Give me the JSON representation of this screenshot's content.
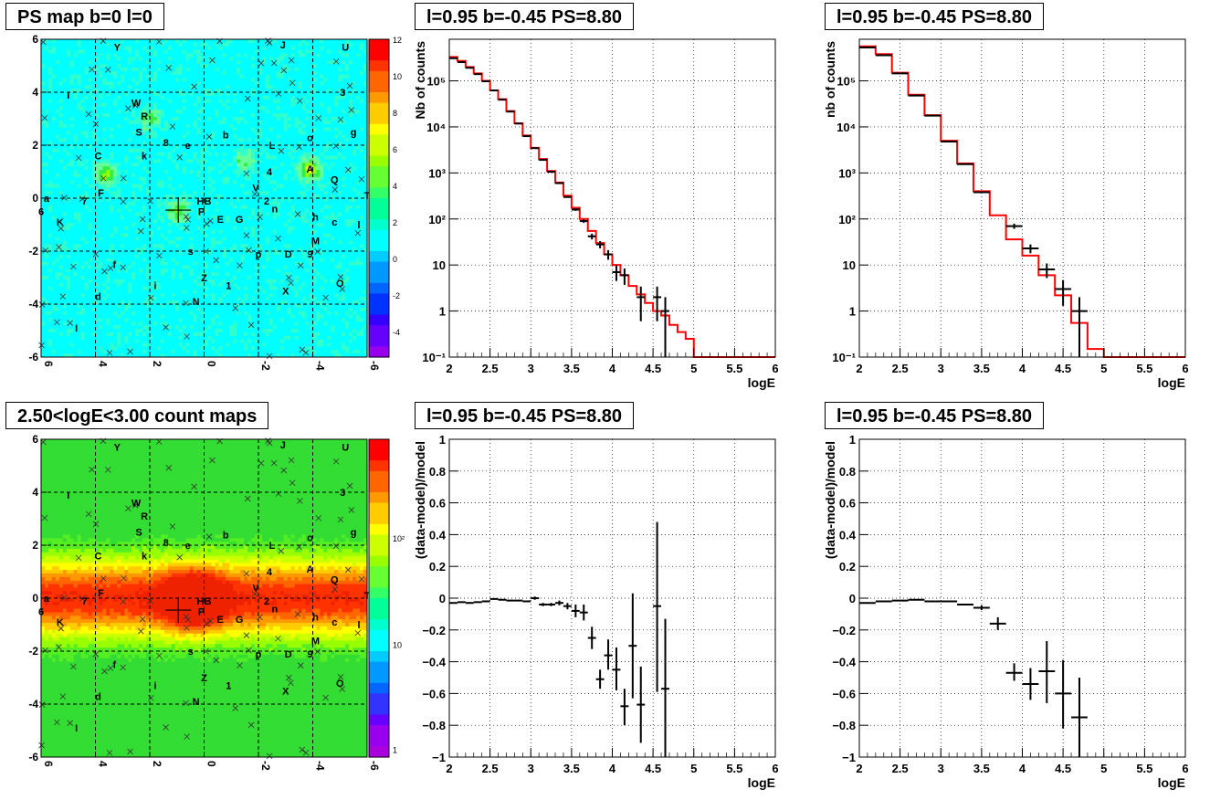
{
  "colors": {
    "histogram": "#ff0000",
    "points": "#000000",
    "psmap_low": "#00ffff",
    "count_high": "#ff0000"
  },
  "panels": {
    "psmap": {
      "title": "PS map b=0 l=0"
    },
    "countmap": {
      "title": "2.50<logE<3.00 count maps"
    }
  },
  "map_axes": {
    "x_ticks": [
      "6",
      "4",
      "2",
      "0",
      "-2",
      "-4",
      "-6"
    ],
    "y_ticks": [
      "6",
      "4",
      "2",
      "0",
      "-2",
      "-4",
      "-6"
    ],
    "psmap_z_ticks": [
      "12",
      "10",
      "8",
      "6",
      "4",
      "2",
      "0",
      "-2",
      "-4"
    ],
    "countmap_z_ticks": [
      "10²",
      "10",
      "1"
    ]
  },
  "source_labels": [
    {
      "t": "Y",
      "l": 3.2,
      "b": 5.7
    },
    {
      "t": "J",
      "l": -2.9,
      "b": 5.8
    },
    {
      "t": "U",
      "l": -5.2,
      "b": 5.7
    },
    {
      "t": "I",
      "l": 5.0,
      "b": 3.9
    },
    {
      "t": "W",
      "l": 2.5,
      "b": 3.6
    },
    {
      "t": "3",
      "l": -5.1,
      "b": 4.0
    },
    {
      "t": "R",
      "l": 2.2,
      "b": 3.1
    },
    {
      "t": "S",
      "l": 2.4,
      "b": 2.5
    },
    {
      "t": "8",
      "l": 1.4,
      "b": 2.1
    },
    {
      "t": "e",
      "l": 0.6,
      "b": 2.0
    },
    {
      "t": "b",
      "l": -0.8,
      "b": 2.4
    },
    {
      "t": "o",
      "l": -3.9,
      "b": 2.3
    },
    {
      "t": "g",
      "l": -5.5,
      "b": 2.5
    },
    {
      "t": "L",
      "l": -2.5,
      "b": 2.0
    },
    {
      "t": "C",
      "l": 3.9,
      "b": 1.6
    },
    {
      "t": "k",
      "l": 2.2,
      "b": 1.6
    },
    {
      "t": "4",
      "l": -2.4,
      "b": 1.0
    },
    {
      "t": "A",
      "l": -3.9,
      "b": 1.1
    },
    {
      "t": "Q",
      "l": -4.8,
      "b": 0.7
    },
    {
      "t": "V",
      "l": -1.9,
      "b": 0.4
    },
    {
      "t": "F",
      "l": 3.8,
      "b": 0.2
    },
    {
      "t": "7",
      "l": 4.4,
      "b": -0.1
    },
    {
      "t": "2",
      "l": -2.3,
      "b": -0.1
    },
    {
      "t": "T",
      "l": -6.0,
      "b": 0.1
    },
    {
      "t": "HB",
      "l": 0.0,
      "b": -0.1
    },
    {
      "t": "n",
      "l": -2.6,
      "b": -0.4
    },
    {
      "t": "P",
      "l": 0.1,
      "b": -0.5
    },
    {
      "t": "E",
      "l": -0.6,
      "b": -0.8
    },
    {
      "t": "G",
      "l": -1.3,
      "b": -0.8
    },
    {
      "t": "h",
      "l": -4.1,
      "b": -0.7
    },
    {
      "t": "c",
      "l": -4.8,
      "b": -0.9
    },
    {
      "t": "K",
      "l": 5.3,
      "b": -0.9
    },
    {
      "t": "l",
      "l": -5.7,
      "b": -1.0
    },
    {
      "t": "M",
      "l": -4.1,
      "b": -1.6
    },
    {
      "t": "s",
      "l": 0.5,
      "b": -2.0
    },
    {
      "t": "p",
      "l": -2.0,
      "b": -2.1
    },
    {
      "t": "D",
      "l": -3.1,
      "b": -2.1
    },
    {
      "t": "9",
      "l": -3.9,
      "b": -2.1
    },
    {
      "t": "f",
      "l": 3.3,
      "b": -2.5
    },
    {
      "t": "Z",
      "l": 0.0,
      "b": -3.0
    },
    {
      "t": "1",
      "l": -0.9,
      "b": -3.3
    },
    {
      "t": "i",
      "l": 1.8,
      "b": -3.3
    },
    {
      "t": "O",
      "l": -5.0,
      "b": -3.2
    },
    {
      "t": "X",
      "l": -3.0,
      "b": -3.5
    },
    {
      "t": "d",
      "l": 3.9,
      "b": -3.7
    },
    {
      "t": "N",
      "l": 0.3,
      "b": -3.9
    },
    {
      "t": "I",
      "l": 4.7,
      "b": -4.9
    },
    {
      "t": "a",
      "l": 5.8,
      "b": 0.0
    },
    {
      "t": "6",
      "l": 6.0,
      "b": -0.5
    }
  ],
  "source_marker": {
    "l": 0.95,
    "b": -0.45
  },
  "chart_data": [
    {
      "type": "line",
      "title": "l=0.95 b=-0.45 PS=8.80",
      "xlabel": "logE",
      "ylabel": "Nb of counts",
      "yscale": "log",
      "xlim": [
        2,
        6
      ],
      "ylim": [
        0.1,
        800000
      ],
      "grid": true,
      "x_ticks": [
        "2",
        "2.5",
        "3",
        "3.5",
        "4",
        "4.5",
        "5",
        "5.5",
        "6"
      ],
      "y_ticks": [
        {
          "v": 100000,
          "t": "10⁵"
        },
        {
          "v": 10000,
          "t": "10⁴"
        },
        {
          "v": 1000,
          "t": "10³"
        },
        {
          "v": 100,
          "t": "10²"
        },
        {
          "v": 10,
          "t": "10"
        },
        {
          "v": 1,
          "t": "1"
        },
        {
          "v": 0.1,
          "t": "10⁻¹"
        }
      ],
      "model_bin_width": 0.1,
      "model": [
        330000,
        270000,
        200000,
        145000,
        100000,
        62000,
        40000,
        22000,
        12000,
        6500,
        3500,
        2000,
        1100,
        620,
        320,
        175,
        100,
        55,
        30,
        17,
        10,
        6,
        3.5,
        2.3,
        1.5,
        1.0,
        0.8,
        0.5,
        0.35,
        0.25,
        0.1,
        0.1,
        0.1,
        0.1,
        0.1,
        0.1,
        0.1,
        0.1,
        0.1,
        0.1
      ],
      "data": [
        {
          "x": 2.05,
          "y": 310000,
          "xe": 0.05,
          "yl": 310000,
          "yh": 310000
        },
        {
          "x": 2.15,
          "y": 255000,
          "xe": 0.05,
          "yl": 255000,
          "yh": 255000
        },
        {
          "x": 2.25,
          "y": 192000,
          "xe": 0.05,
          "yl": 192000,
          "yh": 192000
        },
        {
          "x": 2.35,
          "y": 140000,
          "xe": 0.05,
          "yl": 140000,
          "yh": 140000
        },
        {
          "x": 2.45,
          "y": 98000,
          "xe": 0.05,
          "yl": 98000,
          "yh": 98000
        },
        {
          "x": 2.55,
          "y": 62000,
          "xe": 0.05,
          "yl": 62000,
          "yh": 62000
        },
        {
          "x": 2.65,
          "y": 39000,
          "xe": 0.05,
          "yl": 39000,
          "yh": 39000
        },
        {
          "x": 2.75,
          "y": 21500,
          "xe": 0.05,
          "yl": 21500,
          "yh": 21500
        },
        {
          "x": 2.85,
          "y": 11800,
          "xe": 0.05,
          "yl": 11800,
          "yh": 11800
        },
        {
          "x": 2.95,
          "y": 6300,
          "xe": 0.05,
          "yl": 6300,
          "yh": 6300
        },
        {
          "x": 3.05,
          "y": 3450,
          "xe": 0.05,
          "yl": 3450,
          "yh": 3450
        },
        {
          "x": 3.15,
          "y": 1920,
          "xe": 0.05,
          "yl": 1920,
          "yh": 1920
        },
        {
          "x": 3.25,
          "y": 1060,
          "xe": 0.05,
          "yl": 1060,
          "yh": 1060
        },
        {
          "x": 3.35,
          "y": 600,
          "xe": 0.05,
          "yl": 600,
          "yh": 600
        },
        {
          "x": 3.45,
          "y": 300,
          "xe": 0.05,
          "yl": 300,
          "yh": 300
        },
        {
          "x": 3.55,
          "y": 160,
          "xe": 0.05,
          "yl": 150,
          "yh": 170
        },
        {
          "x": 3.65,
          "y": 90,
          "xe": 0.05,
          "yl": 82,
          "yh": 98
        },
        {
          "x": 3.75,
          "y": 42,
          "xe": 0.05,
          "yl": 36,
          "yh": 48
        },
        {
          "x": 3.85,
          "y": 28,
          "xe": 0.05,
          "yl": 23,
          "yh": 33
        },
        {
          "x": 3.95,
          "y": 17,
          "xe": 0.05,
          "yl": 13,
          "yh": 21
        },
        {
          "x": 4.05,
          "y": 7,
          "xe": 0.05,
          "yl": 4.5,
          "yh": 9.8
        },
        {
          "x": 4.15,
          "y": 6,
          "xe": 0.05,
          "yl": 3.7,
          "yh": 8.4
        },
        {
          "x": 4.35,
          "y": 2,
          "xe": 0.05,
          "yl": 0.6,
          "yh": 3.4
        },
        {
          "x": 4.55,
          "y": 2,
          "xe": 0.05,
          "yl": 0.6,
          "yh": 3.4
        },
        {
          "x": 4.65,
          "y": 1,
          "xe": 0.05,
          "yl": 0.1,
          "yh": 2.0
        }
      ]
    },
    {
      "type": "line",
      "title": "l=0.95 b=-0.45 PS=8.80",
      "xlabel": "logE",
      "ylabel": "nb of counts",
      "yscale": "log",
      "xlim": [
        2,
        6
      ],
      "ylim": [
        0.1,
        800000
      ],
      "grid": true,
      "x_ticks": [
        "2",
        "2.5",
        "3",
        "3.5",
        "4",
        "4.5",
        "5",
        "5.5",
        "6"
      ],
      "y_ticks": [
        {
          "v": 100000,
          "t": "10⁵"
        },
        {
          "v": 10000,
          "t": "10⁴"
        },
        {
          "v": 1000,
          "t": "10³"
        },
        {
          "v": 100,
          "t": "10²"
        },
        {
          "v": 10,
          "t": "10"
        },
        {
          "v": 1,
          "t": "1"
        },
        {
          "v": 0.1,
          "t": "10⁻¹"
        }
      ],
      "model_bin_width": 0.2,
      "model": [
        560000,
        380000,
        150000,
        50000,
        18000,
        5000,
        1600,
        400,
        120,
        36,
        16,
        6,
        2.2,
        0.55,
        0.15,
        0.1,
        0.1,
        0.1,
        0.1,
        0.1
      ],
      "data": [
        {
          "x": 2.1,
          "y": 530000,
          "xe": 0.1,
          "yl": 530000,
          "yh": 530000
        },
        {
          "x": 2.3,
          "y": 360000,
          "xe": 0.1,
          "yl": 360000,
          "yh": 360000
        },
        {
          "x": 2.5,
          "y": 145000,
          "xe": 0.1,
          "yl": 145000,
          "yh": 145000
        },
        {
          "x": 2.7,
          "y": 48000,
          "xe": 0.1,
          "yl": 48000,
          "yh": 48000
        },
        {
          "x": 2.9,
          "y": 17500,
          "xe": 0.1,
          "yl": 17500,
          "yh": 17500
        },
        {
          "x": 3.1,
          "y": 4800,
          "xe": 0.1,
          "yl": 4800,
          "yh": 4800
        },
        {
          "x": 3.3,
          "y": 1550,
          "xe": 0.1,
          "yl": 1550,
          "yh": 1550
        },
        {
          "x": 3.5,
          "y": 380,
          "xe": 0.1,
          "yl": 370,
          "yh": 390
        },
        {
          "x": 3.9,
          "y": 70,
          "xe": 0.1,
          "yl": 61,
          "yh": 79
        },
        {
          "x": 4.1,
          "y": 23,
          "xe": 0.1,
          "yl": 18,
          "yh": 28
        },
        {
          "x": 4.3,
          "y": 8,
          "xe": 0.1,
          "yl": 5.2,
          "yh": 10.8
        },
        {
          "x": 4.5,
          "y": 3,
          "xe": 0.1,
          "yl": 1.3,
          "yh": 4.7
        },
        {
          "x": 4.7,
          "y": 1,
          "xe": 0.1,
          "yl": 0.1,
          "yh": 2.0
        }
      ]
    },
    {
      "type": "scatter",
      "title": "l=0.95 b=-0.45 PS=8.80",
      "xlabel": "logE",
      "ylabel": "(data-model)/model",
      "xlim": [
        2,
        6
      ],
      "ylim": [
        -1,
        1
      ],
      "grid": true,
      "x_ticks": [
        "2",
        "2.5",
        "3",
        "3.5",
        "4",
        "4.5",
        "5",
        "5.5",
        "6"
      ],
      "y_ticks": [
        {
          "v": 1,
          "t": "1"
        },
        {
          "v": 0.8,
          "t": "0.8"
        },
        {
          "v": 0.6,
          "t": "0.6"
        },
        {
          "v": 0.4,
          "t": "0.4"
        },
        {
          "v": 0.2,
          "t": "0.2"
        },
        {
          "v": 0,
          "t": "0"
        },
        {
          "v": -0.2,
          "t": "−0.2"
        },
        {
          "v": -0.4,
          "t": "−0.4"
        },
        {
          "v": -0.6,
          "t": "−0.6"
        },
        {
          "v": -0.8,
          "t": "−0.8"
        },
        {
          "v": -1,
          "t": "−1"
        }
      ],
      "data": [
        {
          "x": 2.05,
          "y": -0.03,
          "xe": 0.05,
          "yl": -0.03,
          "yh": -0.03
        },
        {
          "x": 2.15,
          "y": -0.025,
          "xe": 0.05,
          "yl": -0.025,
          "yh": -0.025
        },
        {
          "x": 2.25,
          "y": -0.03,
          "xe": 0.05,
          "yl": -0.03,
          "yh": -0.03
        },
        {
          "x": 2.35,
          "y": -0.025,
          "xe": 0.05,
          "yl": -0.025,
          "yh": -0.025
        },
        {
          "x": 2.45,
          "y": -0.02,
          "xe": 0.05,
          "yl": -0.02,
          "yh": -0.02
        },
        {
          "x": 2.55,
          "y": -0.005,
          "xe": 0.05,
          "yl": -0.005,
          "yh": -0.005
        },
        {
          "x": 2.65,
          "y": -0.01,
          "xe": 0.05,
          "yl": -0.01,
          "yh": -0.01
        },
        {
          "x": 2.75,
          "y": -0.015,
          "xe": 0.05,
          "yl": -0.015,
          "yh": -0.015
        },
        {
          "x": 2.85,
          "y": -0.015,
          "xe": 0.05,
          "yl": -0.015,
          "yh": -0.015
        },
        {
          "x": 2.95,
          "y": -0.02,
          "xe": 0.05,
          "yl": -0.02,
          "yh": -0.02
        },
        {
          "x": 3.05,
          "y": 0.0,
          "xe": 0.05,
          "yl": -0.01,
          "yh": 0.01
        },
        {
          "x": 3.15,
          "y": -0.04,
          "xe": 0.05,
          "yl": -0.05,
          "yh": -0.03
        },
        {
          "x": 3.25,
          "y": -0.04,
          "xe": 0.05,
          "yl": -0.05,
          "yh": -0.03
        },
        {
          "x": 3.35,
          "y": -0.03,
          "xe": 0.05,
          "yl": -0.045,
          "yh": -0.015
        },
        {
          "x": 3.45,
          "y": -0.05,
          "xe": 0.05,
          "yl": -0.07,
          "yh": -0.03
        },
        {
          "x": 3.55,
          "y": -0.08,
          "xe": 0.05,
          "yl": -0.12,
          "yh": -0.04
        },
        {
          "x": 3.65,
          "y": -0.09,
          "xe": 0.05,
          "yl": -0.14,
          "yh": -0.04
        },
        {
          "x": 3.75,
          "y": -0.25,
          "xe": 0.05,
          "yl": -0.32,
          "yh": -0.18
        },
        {
          "x": 3.85,
          "y": -0.51,
          "xe": 0.05,
          "yl": -0.57,
          "yh": -0.45
        },
        {
          "x": 3.95,
          "y": -0.36,
          "xe": 0.05,
          "yl": -0.45,
          "yh": -0.26
        },
        {
          "x": 4.05,
          "y": -0.45,
          "xe": 0.05,
          "yl": -0.58,
          "yh": -0.31
        },
        {
          "x": 4.15,
          "y": -0.68,
          "xe": 0.05,
          "yl": -0.8,
          "yh": -0.57
        },
        {
          "x": 4.25,
          "y": -0.3,
          "xe": 0.05,
          "yl": -0.63,
          "yh": 0.03
        },
        {
          "x": 4.35,
          "y": -0.67,
          "xe": 0.05,
          "yl": -0.91,
          "yh": -0.43
        },
        {
          "x": 4.55,
          "y": -0.05,
          "xe": 0.05,
          "yl": -0.59,
          "yh": 0.48
        },
        {
          "x": 4.65,
          "y": -0.57,
          "xe": 0.05,
          "yl": -1.0,
          "yh": -0.13
        }
      ]
    },
    {
      "type": "scatter",
      "title": "l=0.95 b=-0.45 PS=8.80",
      "xlabel": "logE",
      "ylabel": "(data-model)/model",
      "xlim": [
        2,
        6
      ],
      "ylim": [
        -1,
        1
      ],
      "grid": true,
      "x_ticks": [
        "2",
        "2.5",
        "3",
        "3.5",
        "4",
        "4.5",
        "5",
        "5.5",
        "6"
      ],
      "y_ticks": [
        {
          "v": 1,
          "t": "1"
        },
        {
          "v": 0.8,
          "t": "0.8"
        },
        {
          "v": 0.6,
          "t": "0.6"
        },
        {
          "v": 0.4,
          "t": "0.4"
        },
        {
          "v": 0.2,
          "t": "0.2"
        },
        {
          "v": 0,
          "t": "0"
        },
        {
          "v": -0.2,
          "t": "−0.2"
        },
        {
          "v": -0.4,
          "t": "−0.4"
        },
        {
          "v": -0.6,
          "t": "−0.6"
        },
        {
          "v": -0.8,
          "t": "−0.8"
        },
        {
          "v": -1,
          "t": "−1"
        }
      ],
      "data": [
        {
          "x": 2.1,
          "y": -0.03,
          "xe": 0.1,
          "yl": -0.03,
          "yh": -0.03
        },
        {
          "x": 2.3,
          "y": -0.02,
          "xe": 0.1,
          "yl": -0.02,
          "yh": -0.02
        },
        {
          "x": 2.5,
          "y": -0.015,
          "xe": 0.1,
          "yl": -0.015,
          "yh": -0.015
        },
        {
          "x": 2.7,
          "y": -0.01,
          "xe": 0.1,
          "yl": -0.01,
          "yh": -0.01
        },
        {
          "x": 2.9,
          "y": -0.02,
          "xe": 0.1,
          "yl": -0.02,
          "yh": -0.02
        },
        {
          "x": 3.1,
          "y": -0.02,
          "xe": 0.1,
          "yl": -0.02,
          "yh": -0.02
        },
        {
          "x": 3.3,
          "y": -0.04,
          "xe": 0.1,
          "yl": -0.045,
          "yh": -0.035
        },
        {
          "x": 3.5,
          "y": -0.06,
          "xe": 0.1,
          "yl": -0.075,
          "yh": -0.045
        },
        {
          "x": 3.7,
          "y": -0.16,
          "xe": 0.1,
          "yl": -0.2,
          "yh": -0.12
        },
        {
          "x": 3.9,
          "y": -0.47,
          "xe": 0.1,
          "yl": -0.52,
          "yh": -0.41
        },
        {
          "x": 4.1,
          "y": -0.54,
          "xe": 0.1,
          "yl": -0.64,
          "yh": -0.44
        },
        {
          "x": 4.3,
          "y": -0.46,
          "xe": 0.1,
          "yl": -0.66,
          "yh": -0.27
        },
        {
          "x": 4.5,
          "y": -0.6,
          "xe": 0.1,
          "yl": -0.82,
          "yh": -0.39
        },
        {
          "x": 4.7,
          "y": -0.75,
          "xe": 0.1,
          "yl": -1.0,
          "yh": -0.5
        }
      ]
    }
  ]
}
